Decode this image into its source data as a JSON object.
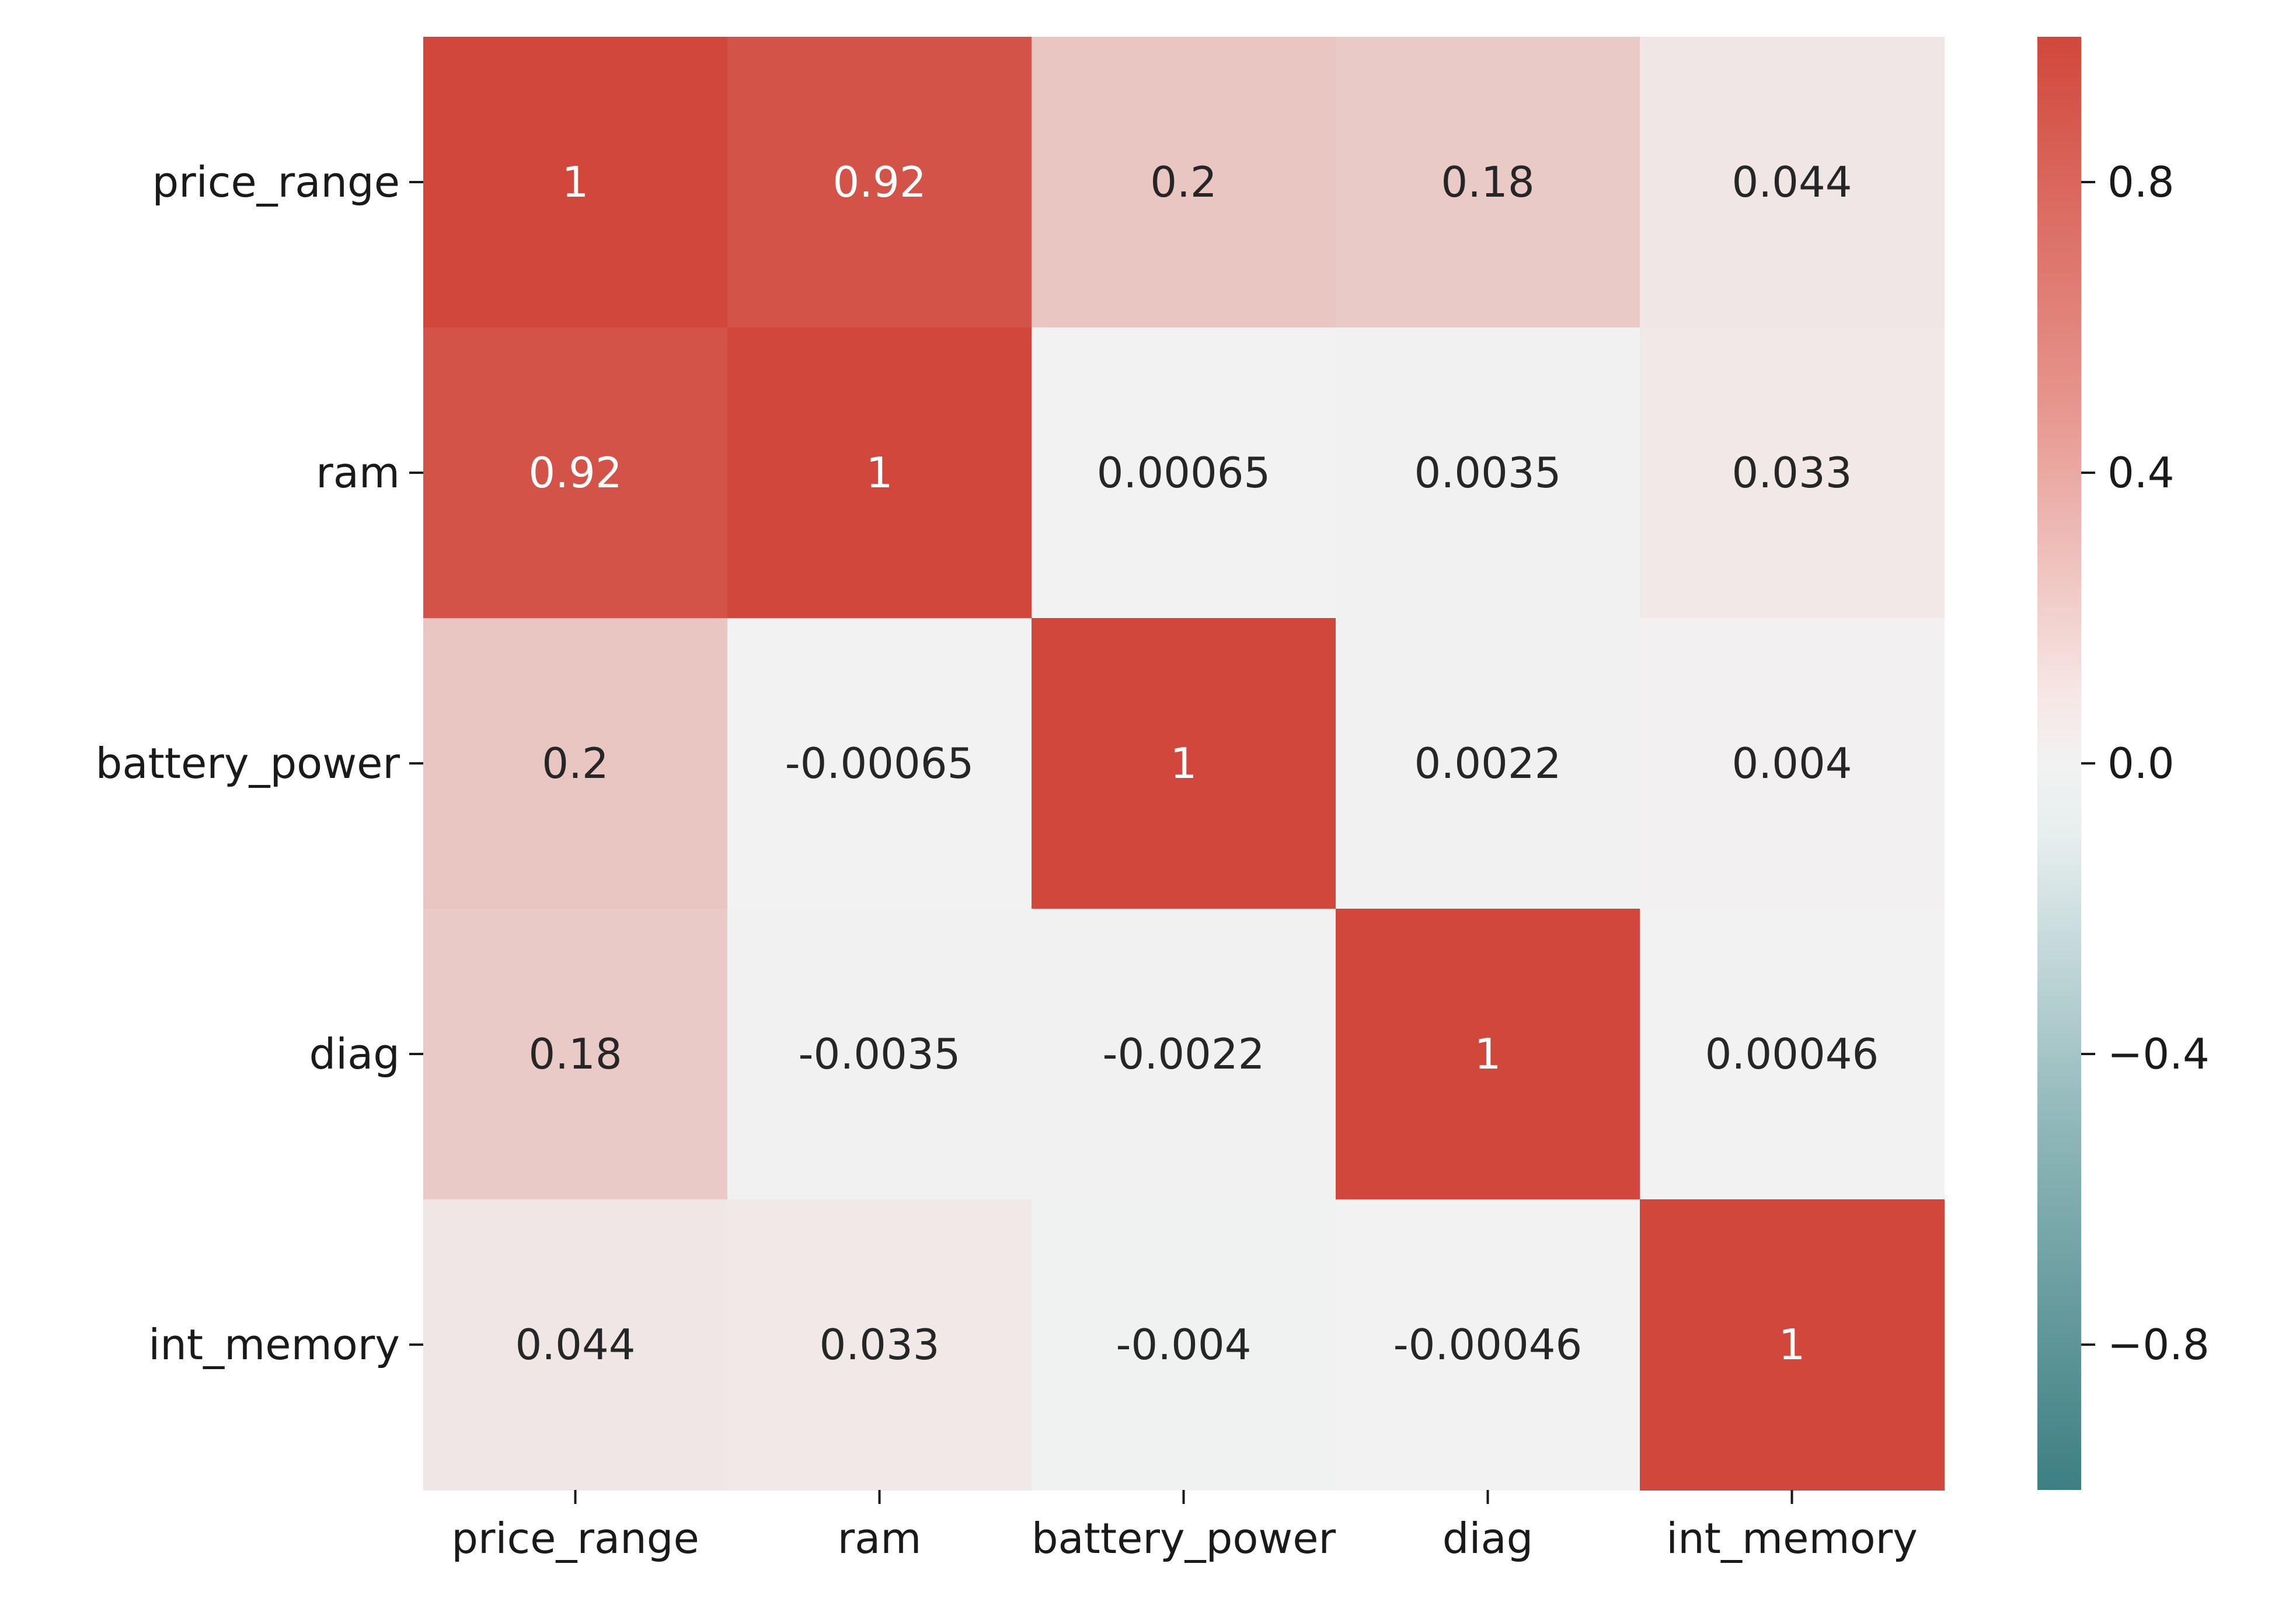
{
  "chart_data": {
    "type": "heatmap",
    "title": "",
    "xlabel": "",
    "ylabel": "",
    "x_categories": [
      "price_range",
      "ram",
      "battery_power",
      "diag",
      "int_memory"
    ],
    "y_categories": [
      "price_range",
      "ram",
      "battery_power",
      "diag",
      "int_memory"
    ],
    "values": [
      [
        1,
        0.92,
        0.2,
        0.18,
        0.044
      ],
      [
        0.92,
        1,
        0.00065,
        0.0035,
        0.033
      ],
      [
        0.2,
        -0.00065,
        1,
        0.0022,
        0.004
      ],
      [
        0.18,
        -0.0035,
        -0.0022,
        1,
        0.00046
      ],
      [
        0.044,
        0.033,
        -0.004,
        -0.00046,
        1
      ]
    ],
    "annotations": [
      [
        "1",
        "0.92",
        "0.2",
        "0.18",
        "0.044"
      ],
      [
        "0.92",
        "1",
        "0.00065",
        "0.0035",
        "0.033"
      ],
      [
        "0.2",
        "-0.00065",
        "1",
        "0.0022",
        "0.004"
      ],
      [
        "0.18",
        "-0.0035",
        "-0.0022",
        "1",
        "0.00046"
      ],
      [
        "0.044",
        "0.033",
        "-0.004",
        "-0.00046",
        "1"
      ]
    ],
    "colorbar": {
      "range": [
        -1,
        1
      ],
      "ticks": [
        0.8,
        0.4,
        0.0,
        -0.4,
        -0.8
      ],
      "tick_labels": [
        "0.8",
        "0.4",
        "0.0",
        "−0.4",
        "−0.8"
      ],
      "colormap": "diverging teal-to-red (center light gray)",
      "low_color": "#3d7f82",
      "mid_color": "#f2f2f2",
      "high_color": "#d1473b"
    },
    "grid": false,
    "legend": "colorbar-right"
  }
}
